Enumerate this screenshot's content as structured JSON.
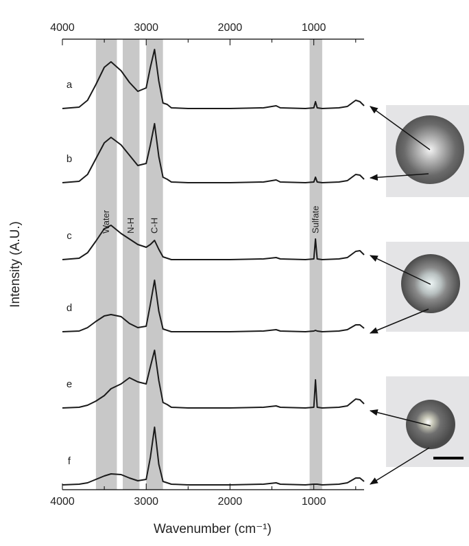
{
  "chart_data": {
    "type": "line",
    "x_label": "Wavenumber (cm⁻¹)",
    "y_label": "Intensity (A.U.)",
    "xlim": [
      4000,
      400
    ],
    "ylim": [
      0,
      656
    ],
    "xticks": [
      4000,
      3000,
      2000,
      1000
    ],
    "xminorticks": [
      3500,
      2500,
      1500,
      500
    ],
    "bands": [
      {
        "label": "Water",
        "range": [
          3600,
          3350
        ]
      },
      {
        "label": "N-H",
        "range": [
          3280,
          3080
        ]
      },
      {
        "label": "C-H",
        "range": [
          3000,
          2800
        ]
      },
      {
        "label": "Sulfate",
        "range": [
          1050,
          900
        ]
      }
    ],
    "band_color": "#c8c8c8",
    "x": [
      4000,
      3800,
      3700,
      3600,
      3500,
      3420,
      3300,
      3200,
      3100,
      3000,
      2950,
      2900,
      2850,
      2800,
      2750,
      2700,
      2500,
      2000,
      1600,
      1450,
      1400,
      1100,
      1000,
      980,
      960,
      900,
      700,
      600,
      500,
      450,
      400
    ],
    "series": [
      {
        "name": "a",
        "color": "#1a1a1a",
        "values": [
          555,
          557,
          567,
          590,
          615,
          623,
          610,
          593,
          580,
          585,
          615,
          641,
          595,
          563,
          561,
          556,
          555,
          555,
          556,
          559,
          556,
          555,
          556,
          565,
          556,
          555,
          556,
          558,
          567,
          565,
          559
        ]
      },
      {
        "name": "b",
        "color": "#1a1a1a",
        "values": [
          447,
          449,
          459,
          482,
          505,
          513,
          502,
          487,
          472,
          475,
          502,
          533,
          485,
          455,
          452,
          448,
          447,
          447,
          448,
          451,
          448,
          447,
          448,
          455,
          448,
          447,
          448,
          450,
          459,
          458,
          452
        ]
      },
      {
        "name": "c",
        "color": "#1a1a1a",
        "values": [
          335,
          337,
          345,
          362,
          380,
          385,
          373,
          365,
          357,
          353,
          357,
          363,
          350,
          339,
          337,
          335,
          335,
          335,
          336,
          338,
          336,
          335,
          336,
          365,
          336,
          335,
          336,
          338,
          347,
          348,
          342
        ]
      },
      {
        "name": "d",
        "color": "#1a1a1a",
        "values": [
          230,
          231,
          236,
          245,
          253,
          255,
          252,
          242,
          236,
          238,
          270,
          305,
          260,
          234,
          232,
          230,
          230,
          230,
          231,
          233,
          231,
          230,
          231,
          232,
          231,
          230,
          231,
          233,
          240,
          240,
          235
        ]
      },
      {
        "name": "e",
        "color": "#1a1a1a",
        "values": [
          119,
          120,
          123,
          129,
          137,
          147,
          154,
          163,
          157,
          154,
          179,
          203,
          159,
          127,
          124,
          120,
          119,
          119,
          120,
          122,
          120,
          119,
          120,
          160,
          120,
          119,
          120,
          122,
          132,
          131,
          125
        ]
      },
      {
        "name": "f",
        "color": "#1a1a1a",
        "values": [
          7,
          8,
          10,
          15,
          20,
          23,
          22,
          17,
          13,
          15,
          47,
          91,
          37,
          12,
          10,
          8,
          7,
          7,
          8,
          10,
          8,
          7,
          8,
          8,
          8,
          7,
          8,
          10,
          17,
          17,
          12
        ]
      }
    ]
  }
}
